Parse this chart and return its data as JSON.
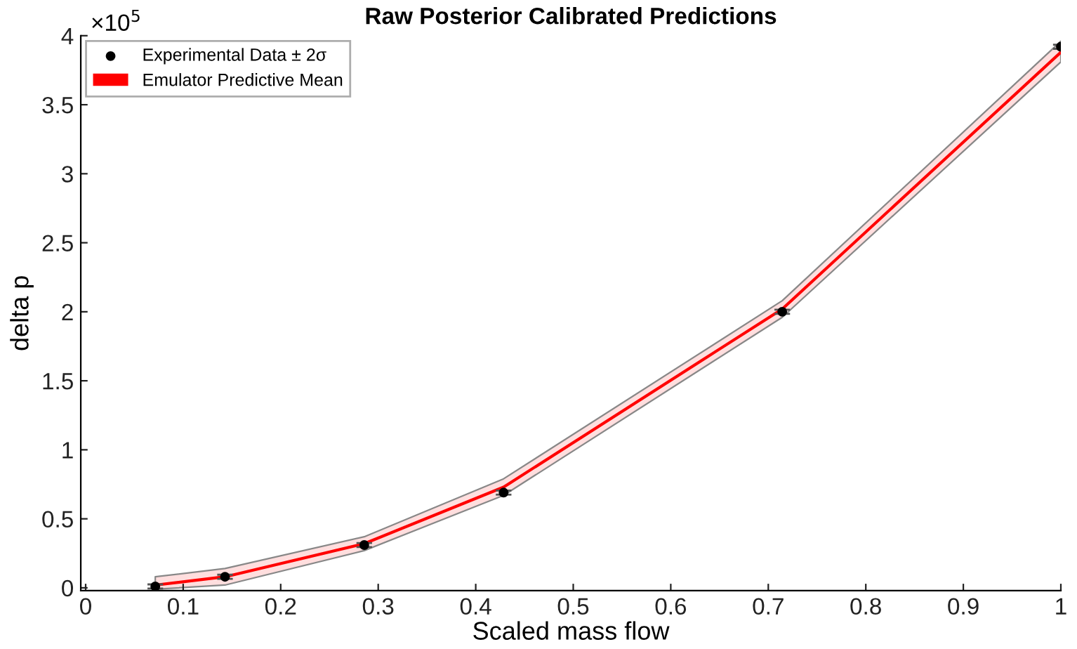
{
  "chart_data": {
    "type": "line",
    "title": "Raw Posterior Calibrated Predictions",
    "xlabel": "Scaled mass flow",
    "ylabel": "delta p",
    "xlim": [
      -0.005,
      1
    ],
    "xticks": [
      0,
      0.1,
      0.2,
      0.3,
      0.4,
      0.5,
      0.6,
      0.7,
      0.8,
      0.9,
      1
    ],
    "ylim": [
      -0.02,
      4
    ],
    "yticks": [
      0,
      0.5,
      1,
      1.5,
      2,
      2.5,
      3,
      3.5,
      4
    ],
    "annotations": [
      "×10$^{5}$"
    ],
    "legend": "top left",
    "grid": false,
    "series": [
      {
        "type": "scatter",
        "name": "Experimental Data ± 2σ",
        "color": "#000000",
        "marker": "circle",
        "x": [
          0.0714,
          0.1429,
          0.2857,
          0.4286,
          0.7143,
          1.0
        ],
        "values": [
          0.01,
          0.08,
          0.31,
          0.69,
          2.0,
          3.92
        ],
        "errors": [
          0.015,
          0.015,
          0.015,
          0.015,
          0.015,
          0.015
        ]
      },
      {
        "name": "Emulator Predictive Mean",
        "color": "#ff0000",
        "x": [
          0.0714,
          0.1429,
          0.2857,
          0.4286,
          0.7143,
          1.0
        ],
        "values": [
          0.02,
          0.08,
          0.32,
          0.73,
          2.02,
          3.88
        ],
        "lower": [
          -0.01,
          0.02,
          0.27,
          0.67,
          1.96,
          3.81
        ],
        "upper": [
          0.08,
          0.14,
          0.37,
          0.79,
          2.08,
          3.96
        ]
      }
    ]
  }
}
